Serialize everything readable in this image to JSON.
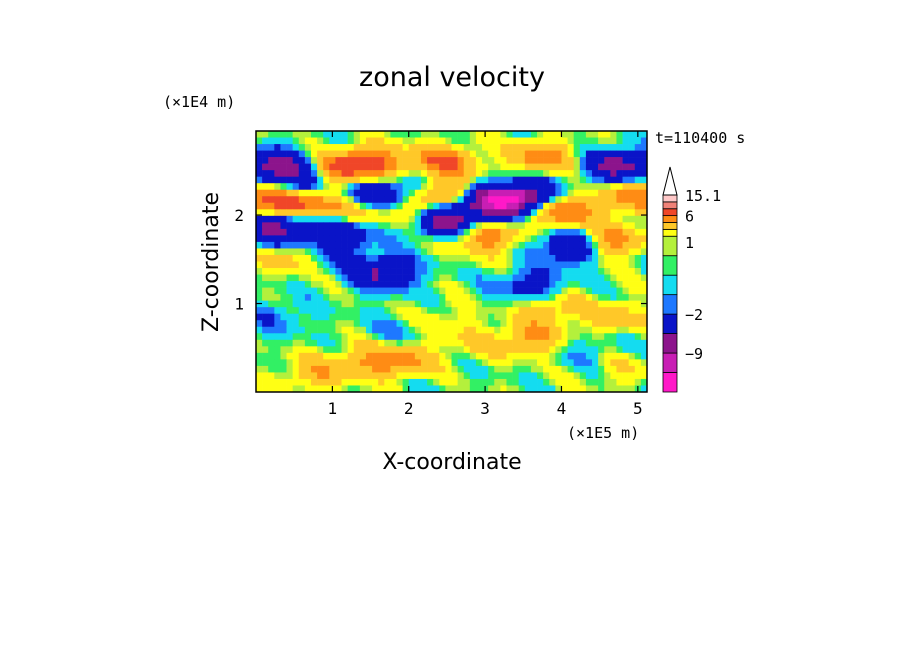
{
  "chart_data": {
    "type": "heatmap",
    "title": "zonal velocity",
    "xlabel": "X-coordinate",
    "ylabel": "Z-coordinate",
    "x_unit": "(×1E5 m)",
    "y_unit": "(×1E4 m)",
    "time_label": "t=110400 s",
    "xlim": [
      0,
      5.12
    ],
    "ylim": [
      0,
      2.95
    ],
    "x_ticks": [
      "1",
      "2",
      "3",
      "4",
      "5"
    ],
    "x_tick_values": [
      1,
      2,
      3,
      4,
      5
    ],
    "y_ticks": [
      "1",
      "2"
    ],
    "y_tick_values": [
      1,
      2
    ],
    "colorbar": {
      "labels": [
        "15.1",
        "6",
        "1",
        "−2",
        "−9"
      ],
      "label_values": [
        15.1,
        6,
        1,
        -2,
        -9
      ],
      "levels": [
        {
          "min": -15,
          "max": -12,
          "color": "#ff19c8"
        },
        {
          "min": -12,
          "max": -9,
          "color": "#c81eb4"
        },
        {
          "min": -9,
          "max": -6,
          "color": "#8c148c"
        },
        {
          "min": -6,
          "max": -2,
          "color": "#0a14c8"
        },
        {
          "min": -2,
          "max": -1,
          "color": "#1e78ff"
        },
        {
          "min": -1,
          "max": 0,
          "color": "#14dcf0"
        },
        {
          "min": 0,
          "max": 0.5,
          "color": "#32f064"
        },
        {
          "min": 0.5,
          "max": 1,
          "color": "#b4f03c"
        },
        {
          "min": 1,
          "max": 2,
          "color": "#ffff14"
        },
        {
          "min": 2,
          "max": 4,
          "color": "#ffc828"
        },
        {
          "min": 4,
          "max": 6,
          "color": "#ff8c14"
        },
        {
          "min": 6,
          "max": 9,
          "color": "#f04628"
        },
        {
          "min": 9,
          "max": 12,
          "color": "#f08278"
        },
        {
          "min": 12,
          "max": 15.1,
          "color": "#ffc8c8"
        }
      ],
      "extend": "max"
    },
    "grid": false,
    "field_features": [
      {
        "x": 0.25,
        "z": 2.55,
        "v": -8
      },
      {
        "x": 0.3,
        "z": 1.85,
        "v": -8
      },
      {
        "x": 0.2,
        "z": 2.2,
        "v": 8
      },
      {
        "x": 0.55,
        "z": 2.35,
        "v": -6
      },
      {
        "x": 0.7,
        "z": 2.1,
        "v": 6
      },
      {
        "x": 0.55,
        "z": 1.55,
        "v": 4
      },
      {
        "x": 0.9,
        "z": 1.6,
        "v": -4
      },
      {
        "x": 1.1,
        "z": 1.85,
        "v": -6
      },
      {
        "x": 1.05,
        "z": 2.5,
        "v": 5
      },
      {
        "x": 1.5,
        "z": 2.6,
        "v": 6
      },
      {
        "x": 1.55,
        "z": 2.2,
        "v": -6
      },
      {
        "x": 1.35,
        "z": 2.0,
        "v": 6
      },
      {
        "x": 1.7,
        "z": 1.95,
        "v": -4
      },
      {
        "x": 1.95,
        "z": 2.0,
        "v": 6
      },
      {
        "x": 2.2,
        "z": 2.3,
        "v": -5
      },
      {
        "x": 1.65,
        "z": 1.35,
        "v": -7
      },
      {
        "x": 2.45,
        "z": 2.6,
        "v": 6
      },
      {
        "x": 2.45,
        "z": 1.95,
        "v": -9
      },
      {
        "x": 2.4,
        "z": 2.25,
        "v": 8
      },
      {
        "x": 3.1,
        "z": 2.15,
        "v": -10
      },
      {
        "x": 3.55,
        "z": 2.2,
        "v": -9
      },
      {
        "x": 3.0,
        "z": 1.75,
        "v": 5
      },
      {
        "x": 3.95,
        "z": 2.05,
        "v": 7
      },
      {
        "x": 4.15,
        "z": 1.65,
        "v": -7
      },
      {
        "x": 4.6,
        "z": 1.7,
        "v": 6
      },
      {
        "x": 4.75,
        "z": 2.55,
        "v": -8
      },
      {
        "x": 4.9,
        "z": 2.2,
        "v": 5
      },
      {
        "x": 3.75,
        "z": 2.65,
        "v": 5
      },
      {
        "x": 3.6,
        "z": 1.2,
        "v": -4
      },
      {
        "x": 2.4,
        "z": 0.8,
        "v": 1.5
      },
      {
        "x": 1.9,
        "z": 0.35,
        "v": 4
      },
      {
        "x": 1.4,
        "z": 0.35,
        "v": 3
      },
      {
        "x": 0.75,
        "z": 0.2,
        "v": 3
      },
      {
        "x": 2.8,
        "z": 0.55,
        "v": 1.5
      },
      {
        "x": 3.6,
        "z": 0.6,
        "v": 4
      },
      {
        "x": 3.85,
        "z": 0.95,
        "v": 3
      },
      {
        "x": 4.35,
        "z": 0.45,
        "v": -1.5
      },
      {
        "x": 0.25,
        "z": 0.85,
        "v": -2
      },
      {
        "x": 1.85,
        "z": 0.7,
        "v": -1.5
      },
      {
        "x": 4.7,
        "z": 0.85,
        "v": 2.5
      },
      {
        "x": 4.75,
        "z": 0.25,
        "v": 1.5
      }
    ],
    "background_value": 0.35
  }
}
